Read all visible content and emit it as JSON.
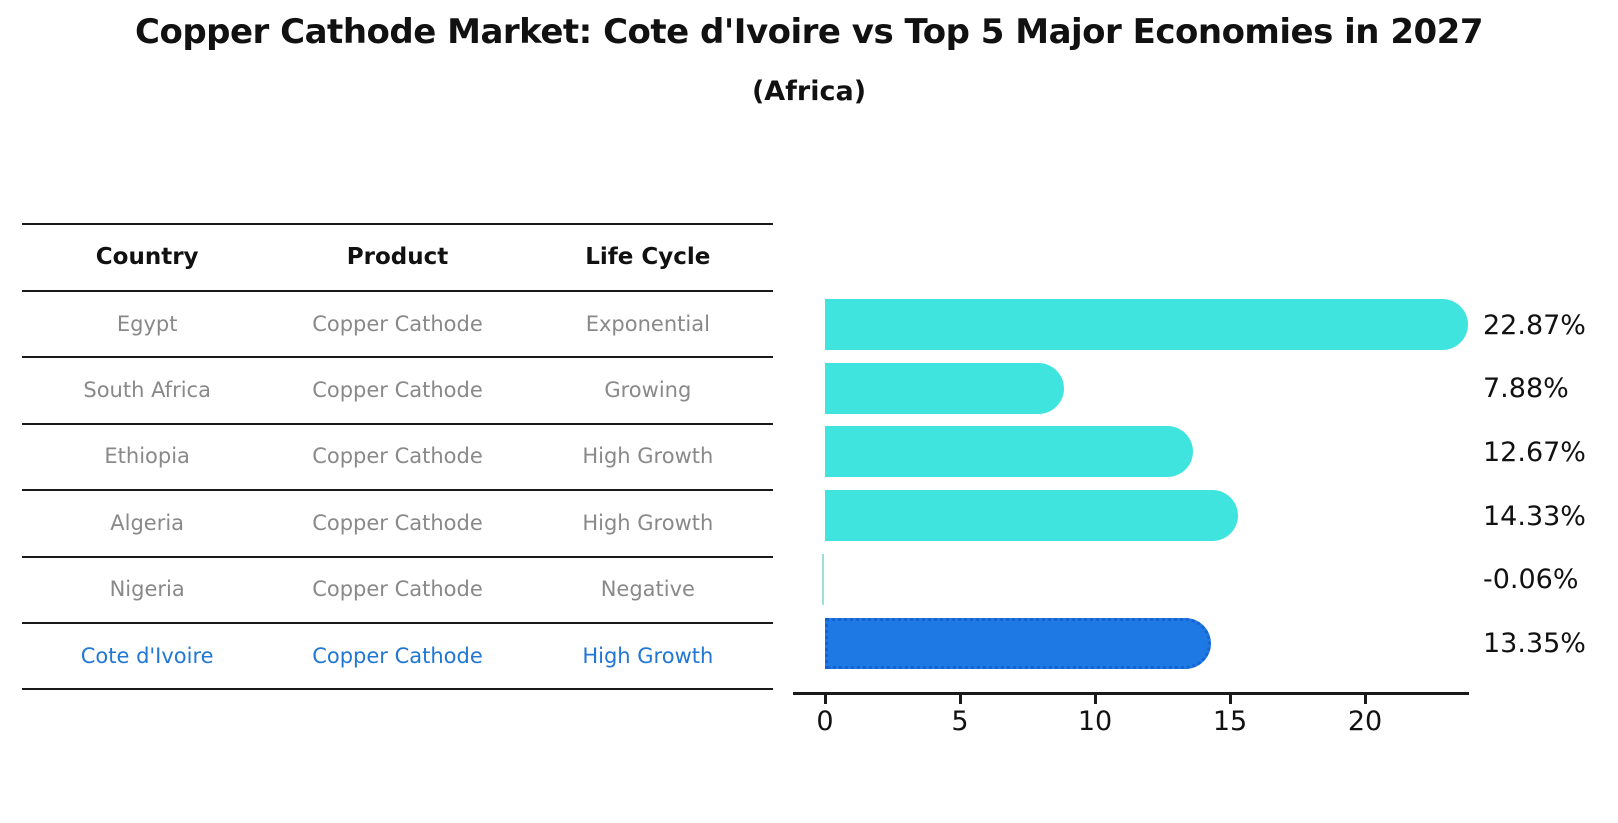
{
  "title": "Copper Cathode Market: Cote d'Ivoire vs Top 5 Major Economies in 2027",
  "subtitle": "(Africa)",
  "table": {
    "headers": [
      "Country",
      "Product",
      "Life Cycle"
    ],
    "rows": [
      {
        "country": "Egypt",
        "product": "Copper Cathode",
        "life_cycle": "Exponential",
        "highlight": false
      },
      {
        "country": "South Africa",
        "product": "Copper Cathode",
        "life_cycle": "Growing",
        "highlight": false
      },
      {
        "country": "Ethiopia",
        "product": "Copper Cathode",
        "life_cycle": "High Growth",
        "highlight": false
      },
      {
        "country": "Algeria",
        "product": "Copper Cathode",
        "life_cycle": "High Growth",
        "highlight": false
      },
      {
        "country": "Nigeria",
        "product": "Copper Cathode",
        "life_cycle": "Negative",
        "highlight": false
      },
      {
        "country": "Cote d'Ivoire",
        "product": "Copper Cathode",
        "life_cycle": "High Growth",
        "highlight": true
      }
    ]
  },
  "chart_data": {
    "type": "bar",
    "orientation": "horizontal",
    "title": "Copper Cathode Market: Cote d'Ivoire vs Top 5 Major Economies in 2027",
    "subtitle": "(Africa)",
    "categories": [
      "Egypt",
      "South Africa",
      "Ethiopia",
      "Algeria",
      "Nigeria",
      "Cote d'Ivoire"
    ],
    "values": [
      22.87,
      7.88,
      12.67,
      14.33,
      -0.06,
      13.35
    ],
    "value_labels": [
      "22.87%",
      "7.88%",
      "12.67%",
      "14.33%",
      "-0.06%",
      "13.35%"
    ],
    "xticks": [
      0,
      5,
      10,
      15,
      20
    ],
    "xlim": [
      -1.2,
      23.85
    ],
    "grid": false,
    "legend": false,
    "highlight_index": 5,
    "colors": {
      "bar": "#40E4DF",
      "highlight_bar": "#1E79E5",
      "highlight_bar_border": "#1563CF",
      "near_zero_bar": "#9FDFDA",
      "highlight_text": "#2077D4",
      "body_text": "#898989",
      "axis": "#1A1A1A"
    }
  }
}
